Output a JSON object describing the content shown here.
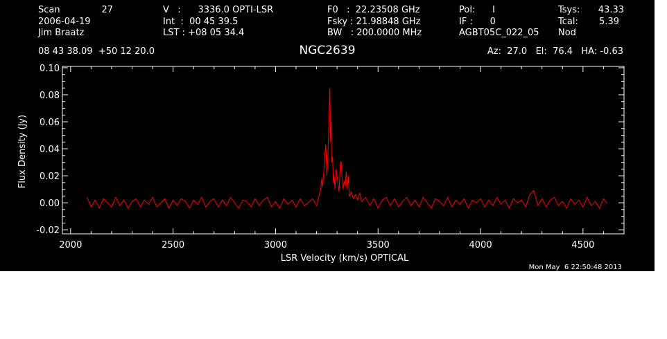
{
  "header": {
    "col1": [
      "Scan",
      "2006-04-19",
      "Jim Braatz"
    ],
    "scan_value": "27",
    "col2": [
      "V   :      3336.0 OPTI-LSR",
      "Int  :  00 45 39.5",
      "LST : +08 05 34.4"
    ],
    "col3": [
      "F0   :  22.23508 GHz",
      "Fsky : 21.98848 GHz",
      "BW   : 200.0000 MHz"
    ],
    "col4": [
      "Pol:      I",
      "IF :      0",
      "AGBT05C_022_05"
    ],
    "col4_extra": "Nod",
    "col5_labels": [
      "Tsys:",
      "Tcal:"
    ],
    "col5_values": [
      "43.33",
      "5.39"
    ],
    "coords": "08 43 38.09  +50 12 20.0",
    "object": "NGC2639",
    "pointing": "Az:  27.0   El:  76.4   HA: -0.63",
    "timestamp": "Mon May  6 22:50:48 2013"
  },
  "chart_data": {
    "type": "line",
    "xlabel": "LSR Velocity (km/s) OPTICAL",
    "ylabel": "Flux Density (Jy)",
    "xlim": [
      1960,
      4700
    ],
    "ylim": [
      -0.023,
      0.101
    ],
    "xticks": [
      2000,
      2500,
      3000,
      3500,
      4000,
      4500
    ],
    "xtick_labels": [
      "2000",
      "2500",
      "3000",
      "3500",
      "4000",
      "4500"
    ],
    "yticks": [
      -0.02,
      0.0,
      0.02,
      0.04,
      0.06,
      0.08,
      0.1
    ],
    "ytick_labels": [
      "-0.02",
      "0.00",
      "0.02",
      "0.04",
      "0.06",
      "0.08",
      "0.10"
    ],
    "series_color": "#ff0000",
    "series": [
      {
        "x": [
          2080,
          2100,
          2120,
          2140,
          2160,
          2180,
          2200,
          2220,
          2240,
          2260,
          2280,
          2300,
          2320,
          2340,
          2360,
          2380,
          2400,
          2420,
          2440,
          2460,
          2480,
          2500,
          2520,
          2540,
          2560,
          2580,
          2600,
          2620,
          2640,
          2660,
          2680,
          2700,
          2720,
          2740,
          2760,
          2780,
          2800,
          2820,
          2840,
          2860,
          2880,
          2900,
          2920,
          2940,
          2960,
          2980,
          3000,
          3020,
          3040,
          3060,
          3080,
          3100,
          3120,
          3140,
          3160,
          3180,
          3200,
          3210,
          3220,
          3225,
          3230,
          3235,
          3240,
          3245,
          3250,
          3255,
          3260,
          3265,
          3268,
          3271,
          3274,
          3278,
          3282,
          3286,
          3290,
          3295,
          3300,
          3305,
          3310,
          3315,
          3320,
          3325,
          3330,
          3335,
          3340,
          3345,
          3350,
          3355,
          3360,
          3370,
          3380,
          3390,
          3400,
          3410,
          3420,
          3440,
          3460,
          3480,
          3500,
          3520,
          3540,
          3560,
          3580,
          3600,
          3620,
          3640,
          3660,
          3680,
          3700,
          3720,
          3740,
          3760,
          3780,
          3800,
          3820,
          3840,
          3860,
          3880,
          3900,
          3920,
          3940,
          3960,
          3980,
          4000,
          4020,
          4040,
          4060,
          4080,
          4100,
          4120,
          4140,
          4160,
          4180,
          4200,
          4220,
          4240,
          4260,
          4280,
          4300,
          4320,
          4340,
          4360,
          4380,
          4400,
          4420,
          4440,
          4460,
          4480,
          4500,
          4520,
          4540,
          4560,
          4580,
          4600,
          4615
        ],
        "y": [
          0.004,
          -0.003,
          0.002,
          -0.004,
          0.003,
          0.0,
          -0.003,
          0.004,
          -0.002,
          0.002,
          -0.004,
          0.001,
          0.003,
          -0.003,
          0.002,
          -0.001,
          0.004,
          -0.003,
          0.0,
          0.003,
          -0.004,
          0.002,
          -0.002,
          0.003,
          0.001,
          -0.004,
          0.002,
          -0.001,
          0.004,
          -0.003,
          0.001,
          0.003,
          -0.003,
          0.002,
          -0.002,
          0.004,
          0.0,
          -0.004,
          0.002,
          0.001,
          -0.003,
          0.003,
          -0.002,
          0.002,
          0.004,
          -0.003,
          0.001,
          -0.004,
          0.003,
          -0.001,
          0.002,
          -0.003,
          0.003,
          -0.002,
          0.0,
          0.003,
          -0.002,
          0.004,
          0.01,
          0.018,
          0.012,
          0.022,
          0.035,
          0.043,
          0.02,
          0.032,
          0.06,
          0.085,
          0.045,
          0.06,
          0.03,
          0.034,
          0.015,
          0.02,
          0.01,
          0.025,
          0.02,
          0.014,
          0.008,
          0.028,
          0.031,
          0.018,
          0.01,
          0.016,
          0.012,
          0.023,
          0.01,
          0.02,
          0.005,
          0.008,
          0.003,
          0.006,
          0.002,
          0.007,
          0.001,
          0.004,
          -0.002,
          0.003,
          -0.004,
          0.002,
          0.004,
          -0.002,
          0.003,
          -0.003,
          0.001,
          0.004,
          -0.002,
          0.002,
          -0.003,
          0.004,
          0.0,
          -0.004,
          0.003,
          0.001,
          -0.002,
          0.004,
          -0.003,
          0.002,
          -0.001,
          0.003,
          -0.004,
          0.002,
          0.0,
          0.003,
          -0.003,
          0.002,
          -0.002,
          0.004,
          -0.001,
          0.002,
          -0.004,
          0.003,
          0.0,
          0.002,
          -0.003,
          0.006,
          0.009,
          -0.002,
          0.003,
          -0.003,
          0.002,
          0.004,
          -0.002,
          0.001,
          -0.004,
          0.003,
          -0.001,
          0.002,
          -0.003,
          0.004,
          -0.002,
          0.001,
          -0.004,
          0.003,
          0.0
        ]
      }
    ]
  }
}
